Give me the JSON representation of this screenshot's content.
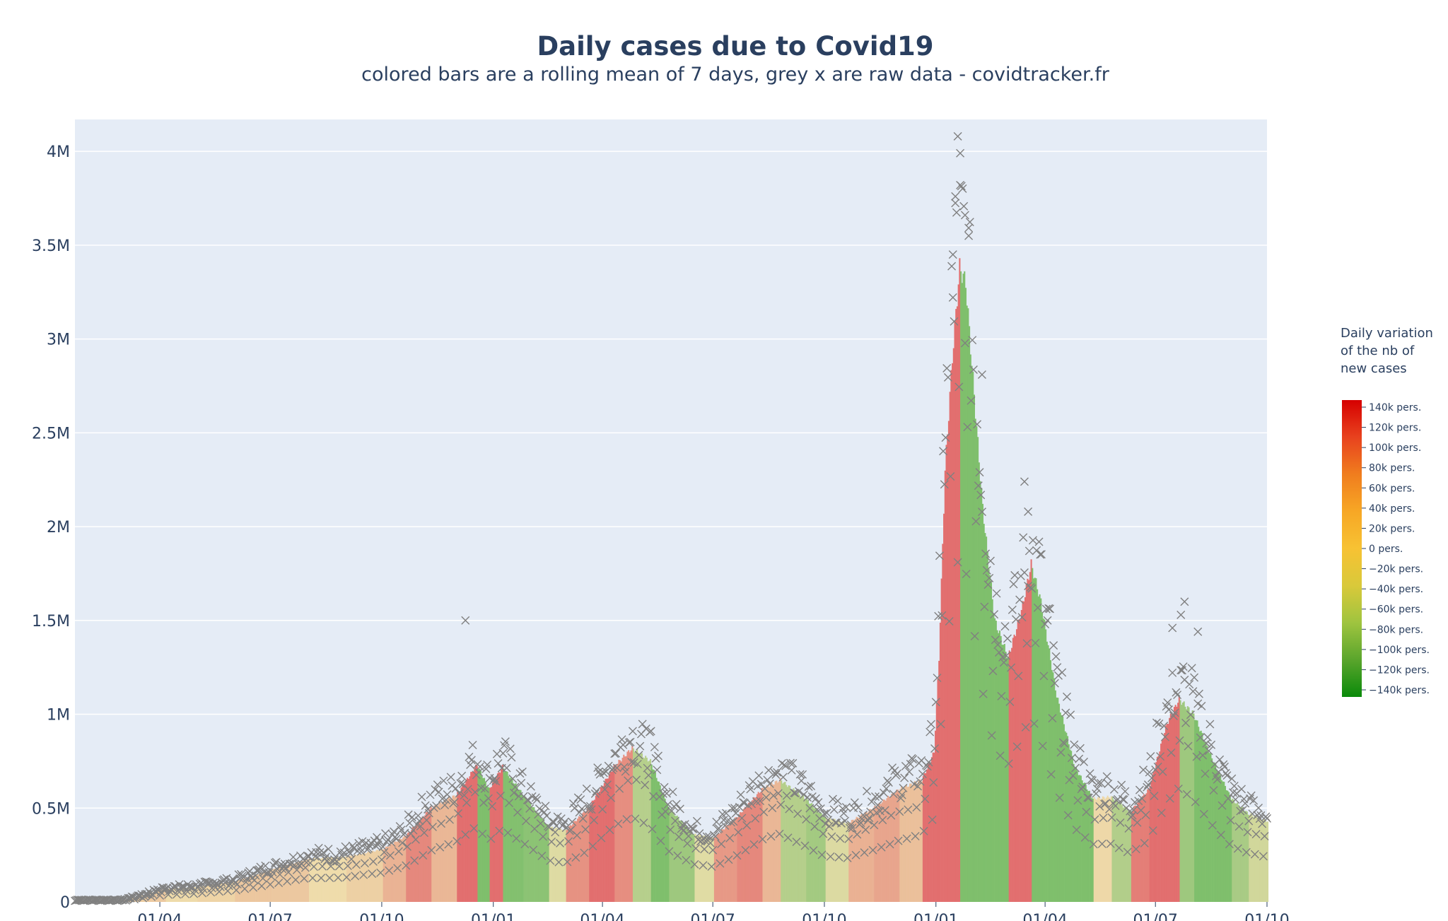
{
  "chart_data": {
    "type": "bar",
    "title": "Daily cases due to Covid19",
    "subtitle": "colored bars are a rolling mean of 7 days, grey x are raw data - covidtracker.fr",
    "xlabel": "",
    "ylabel": "",
    "x_range": [
      "2020-01-22",
      "2022-10-01"
    ],
    "ylim": [
      0,
      4.17
    ],
    "y_unit": "M",
    "y_ticks": [
      {
        "value": 0,
        "label": "0"
      },
      {
        "value": 0.5,
        "label": "0.5M"
      },
      {
        "value": 1,
        "label": "1M"
      },
      {
        "value": 1.5,
        "label": "1.5M"
      },
      {
        "value": 2,
        "label": "2M"
      },
      {
        "value": 2.5,
        "label": "2.5M"
      },
      {
        "value": 3,
        "label": "3M"
      },
      {
        "value": 3.5,
        "label": "3.5M"
      },
      {
        "value": 4,
        "label": "4M"
      }
    ],
    "x_ticks": [
      {
        "date": "2020-04-01",
        "label": "01/04"
      },
      {
        "date": "2020-07-01",
        "label": "01/07"
      },
      {
        "date": "2020-10-01",
        "label": "01/10"
      },
      {
        "date": "2021-01-01",
        "label": "01/01"
      },
      {
        "date": "2021-04-01",
        "label": "01/04"
      },
      {
        "date": "2021-07-01",
        "label": "01/07"
      },
      {
        "date": "2021-10-01",
        "label": "01/10"
      },
      {
        "date": "2022-01-01",
        "label": "01/01"
      },
      {
        "date": "2022-04-01",
        "label": "01/04"
      },
      {
        "date": "2022-07-01",
        "label": "01/07"
      },
      {
        "date": "2022-10-01",
        "label": "01/10"
      }
    ],
    "series": [
      {
        "kind": "rolling-mean-bars",
        "points": [
          [
            "2020-01-22",
            0.01
          ],
          [
            "2020-03-01",
            0.01
          ],
          [
            "2020-03-20",
            0.04
          ],
          [
            "2020-04-05",
            0.07
          ],
          [
            "2020-05-01",
            0.08
          ],
          [
            "2020-06-01",
            0.11
          ],
          [
            "2020-07-01",
            0.17
          ],
          [
            "2020-08-01",
            0.23
          ],
          [
            "2020-09-01",
            0.24
          ],
          [
            "2020-10-01",
            0.28
          ],
          [
            "2020-10-20",
            0.35
          ],
          [
            "2020-11-10",
            0.5
          ],
          [
            "2020-12-01",
            0.57
          ],
          [
            "2020-12-18",
            0.73
          ],
          [
            "2020-12-28",
            0.6
          ],
          [
            "2021-01-08",
            0.72
          ],
          [
            "2021-01-25",
            0.57
          ],
          [
            "2021-02-15",
            0.4
          ],
          [
            "2021-03-01",
            0.38
          ],
          [
            "2021-03-20",
            0.5
          ],
          [
            "2021-04-10",
            0.72
          ],
          [
            "2021-04-25",
            0.82
          ],
          [
            "2021-05-10",
            0.75
          ],
          [
            "2021-05-25",
            0.5
          ],
          [
            "2021-06-15",
            0.36
          ],
          [
            "2021-07-01",
            0.34
          ],
          [
            "2021-07-20",
            0.45
          ],
          [
            "2021-08-10",
            0.6
          ],
          [
            "2021-08-25",
            0.65
          ],
          [
            "2021-09-15",
            0.55
          ],
          [
            "2021-10-01",
            0.45
          ],
          [
            "2021-10-20",
            0.42
          ],
          [
            "2021-11-10",
            0.5
          ],
          [
            "2021-12-01",
            0.6
          ],
          [
            "2021-12-20",
            0.65
          ],
          [
            "2021-12-30",
            0.8
          ],
          [
            "2022-01-03",
            1.3
          ],
          [
            "2022-01-08",
            2.3
          ],
          [
            "2022-01-14",
            2.9
          ],
          [
            "2022-01-20",
            3.38
          ],
          [
            "2022-01-25",
            3.3
          ],
          [
            "2022-02-01",
            2.7
          ],
          [
            "2022-02-08",
            2.1
          ],
          [
            "2022-02-18",
            1.5
          ],
          [
            "2022-03-01",
            1.3
          ],
          [
            "2022-03-12",
            1.55
          ],
          [
            "2022-03-20",
            1.8
          ],
          [
            "2022-03-28",
            1.6
          ],
          [
            "2022-04-10",
            1.1
          ],
          [
            "2022-04-25",
            0.72
          ],
          [
            "2022-05-10",
            0.55
          ],
          [
            "2022-05-25",
            0.56
          ],
          [
            "2022-06-10",
            0.48
          ],
          [
            "2022-06-25",
            0.6
          ],
          [
            "2022-07-10",
            0.95
          ],
          [
            "2022-07-20",
            1.08
          ],
          [
            "2022-08-01",
            1.0
          ],
          [
            "2022-08-15",
            0.78
          ],
          [
            "2022-09-01",
            0.55
          ],
          [
            "2022-09-15",
            0.47
          ],
          [
            "2022-10-01",
            0.43
          ]
        ]
      },
      {
        "kind": "raw-daily-x",
        "marker": "x",
        "color": "#808080",
        "outliers": [
          [
            "2020-12-09",
            1.5
          ],
          [
            "2022-01-19",
            4.08
          ],
          [
            "2022-01-21",
            3.82
          ],
          [
            "2022-01-17",
            3.76
          ],
          [
            "2022-01-25",
            3.66
          ],
          [
            "2022-01-28",
            3.55
          ],
          [
            "2022-01-15",
            3.45
          ],
          [
            "2022-02-08",
            2.81
          ],
          [
            "2022-03-15",
            2.24
          ],
          [
            "2022-03-18",
            2.08
          ],
          [
            "2022-07-25",
            1.6
          ],
          [
            "2022-07-22",
            1.53
          ],
          [
            "2022-08-05",
            1.44
          ],
          [
            "2022-07-15",
            1.46
          ]
        ]
      }
    ],
    "colorbar": {
      "title": [
        "Daily variation",
        "of the nb of",
        "new cases"
      ],
      "colors": [
        "#d60000",
        "#e8421e",
        "#f07d1e",
        "#f7a725",
        "#f7c233",
        "#d9c93a",
        "#9fc43f",
        "#5aa52c",
        "#0a8a0a"
      ],
      "ticks": [
        "140k pers.",
        "120k pers.",
        "100k pers.",
        "80k pers.",
        "60k pers.",
        "40k pers.",
        "20k pers.",
        "0 pers.",
        "−20k pers.",
        "−40k pers.",
        "−60k pers.",
        "−80k pers.",
        "−100k pers.",
        "−120k pers.",
        "−140k pers."
      ]
    },
    "plot_bg": "#e5ecf6",
    "grid": true
  }
}
